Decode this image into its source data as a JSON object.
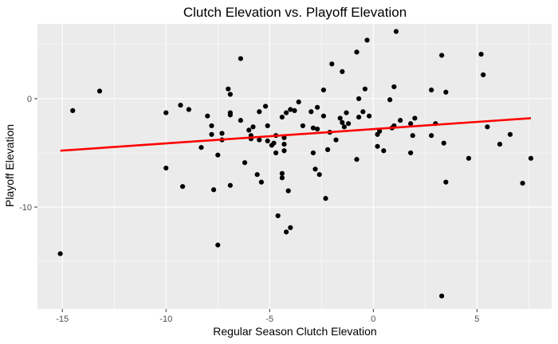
{
  "chart_data": {
    "type": "scatter",
    "title": "Clutch Elevation vs. Playoff Elevation",
    "xlabel": "Regular Season Clutch Elevation",
    "ylabel": "Playoff Elevation",
    "xlim": [
      -16.2,
      8.6
    ],
    "ylim": [
      -19.4,
      6.9
    ],
    "x_ticks": [
      -15,
      -10,
      -5,
      0,
      5
    ],
    "y_ticks": [
      0,
      -10
    ],
    "x_tick_labels": [
      "-15",
      "-10",
      "-5",
      "0",
      "5"
    ],
    "y_tick_labels": [
      "0",
      "-10"
    ],
    "grid": true,
    "colors": {
      "panel": "#ebebeb",
      "grid_major": "#ffffff",
      "points": "#000000",
      "trend_line": "#ff0000"
    },
    "trend_line": {
      "x": [
        -15.1,
        7.6
      ],
      "y": [
        -4.8,
        -1.8
      ]
    },
    "points": [
      [
        -15.1,
        -14.3
      ],
      [
        -14.5,
        -1.1
      ],
      [
        -13.2,
        0.7
      ],
      [
        -10.0,
        -1.3
      ],
      [
        -10.0,
        -6.4
      ],
      [
        -9.3,
        -0.6
      ],
      [
        -9.2,
        -8.1
      ],
      [
        -8.9,
        -1.0
      ],
      [
        -8.3,
        -4.5
      ],
      [
        -8.0,
        -1.6
      ],
      [
        -7.8,
        -2.5
      ],
      [
        -7.8,
        -3.3
      ],
      [
        -7.7,
        -8.4
      ],
      [
        -7.5,
        -13.5
      ],
      [
        -7.5,
        -5.2
      ],
      [
        -7.3,
        -3.2
      ],
      [
        -7.3,
        -3.8
      ],
      [
        -7.0,
        0.9
      ],
      [
        -6.9,
        0.4
      ],
      [
        -6.9,
        -1.3
      ],
      [
        -6.9,
        -1.5
      ],
      [
        -6.9,
        -8.0
      ],
      [
        -6.4,
        3.7
      ],
      [
        -6.4,
        -2.0
      ],
      [
        -6.2,
        -5.9
      ],
      [
        -6.0,
        -2.9
      ],
      [
        -5.9,
        -3.4
      ],
      [
        -5.9,
        -3.7
      ],
      [
        -5.8,
        -2.6
      ],
      [
        -5.6,
        -7.0
      ],
      [
        -5.5,
        -1.2
      ],
      [
        -5.5,
        -3.8
      ],
      [
        -5.4,
        -7.7
      ],
      [
        -5.2,
        -0.7
      ],
      [
        -5.1,
        -2.5
      ],
      [
        -5.1,
        -3.9
      ],
      [
        -4.9,
        -4.3
      ],
      [
        -4.8,
        -4.1
      ],
      [
        -4.7,
        -3.4
      ],
      [
        -4.7,
        -5.0
      ],
      [
        -4.6,
        -10.8
      ],
      [
        -4.4,
        -6.9
      ],
      [
        -4.4,
        -7.3
      ],
      [
        -4.4,
        -1.7
      ],
      [
        -4.3,
        -3.6
      ],
      [
        -4.3,
        -4.2
      ],
      [
        -4.3,
        -4.8
      ],
      [
        -4.2,
        -1.3
      ],
      [
        -4.2,
        -12.3
      ],
      [
        -4.1,
        -8.5
      ],
      [
        -4.0,
        -1.0
      ],
      [
        -4.0,
        -11.9
      ],
      [
        -3.8,
        -1.1
      ],
      [
        -3.6,
        -0.3
      ],
      [
        -3.4,
        -2.5
      ],
      [
        -3.0,
        -1.2
      ],
      [
        -2.9,
        -2.7
      ],
      [
        -2.9,
        -5.0
      ],
      [
        -2.8,
        -6.5
      ],
      [
        -2.7,
        -2.8
      ],
      [
        -2.7,
        -0.8
      ],
      [
        -2.6,
        -7.0
      ],
      [
        -2.4,
        -1.6
      ],
      [
        -2.4,
        0.8
      ],
      [
        -2.3,
        -9.2
      ],
      [
        -2.2,
        -4.7
      ],
      [
        -2.1,
        -3.1
      ],
      [
        -2.0,
        3.2
      ],
      [
        -1.8,
        -3.8
      ],
      [
        -1.6,
        -1.8
      ],
      [
        -1.5,
        2.5
      ],
      [
        -1.5,
        -2.2
      ],
      [
        -1.4,
        -2.6
      ],
      [
        -1.3,
        -1.3
      ],
      [
        -1.2,
        -2.3
      ],
      [
        -0.8,
        4.3
      ],
      [
        -0.8,
        -5.6
      ],
      [
        -0.7,
        0.0
      ],
      [
        -0.7,
        -1.7
      ],
      [
        -0.5,
        -1.2
      ],
      [
        -0.4,
        0.9
      ],
      [
        -0.3,
        5.4
      ],
      [
        -0.2,
        -1.6
      ],
      [
        0.2,
        -3.3
      ],
      [
        0.2,
        -4.4
      ],
      [
        0.3,
        -3.0
      ],
      [
        0.5,
        -4.8
      ],
      [
        0.8,
        -0.1
      ],
      [
        0.9,
        -2.7
      ],
      [
        1.0,
        -2.5
      ],
      [
        1.0,
        1.1
      ],
      [
        1.1,
        6.2
      ],
      [
        1.3,
        -2.0
      ],
      [
        1.8,
        -2.3
      ],
      [
        1.8,
        -5.0
      ],
      [
        1.9,
        -3.4
      ],
      [
        2.0,
        -1.8
      ],
      [
        2.8,
        0.8
      ],
      [
        2.8,
        -3.4
      ],
      [
        3.0,
        -2.3
      ],
      [
        3.3,
        4.0
      ],
      [
        3.3,
        -18.2
      ],
      [
        3.4,
        -4.1
      ],
      [
        3.5,
        -7.7
      ],
      [
        3.5,
        0.6
      ],
      [
        4.6,
        -5.5
      ],
      [
        5.2,
        4.1
      ],
      [
        5.3,
        2.2
      ],
      [
        5.5,
        -2.6
      ],
      [
        6.1,
        -4.2
      ],
      [
        6.6,
        -3.3
      ],
      [
        7.2,
        -7.8
      ],
      [
        7.6,
        -5.5
      ]
    ]
  }
}
